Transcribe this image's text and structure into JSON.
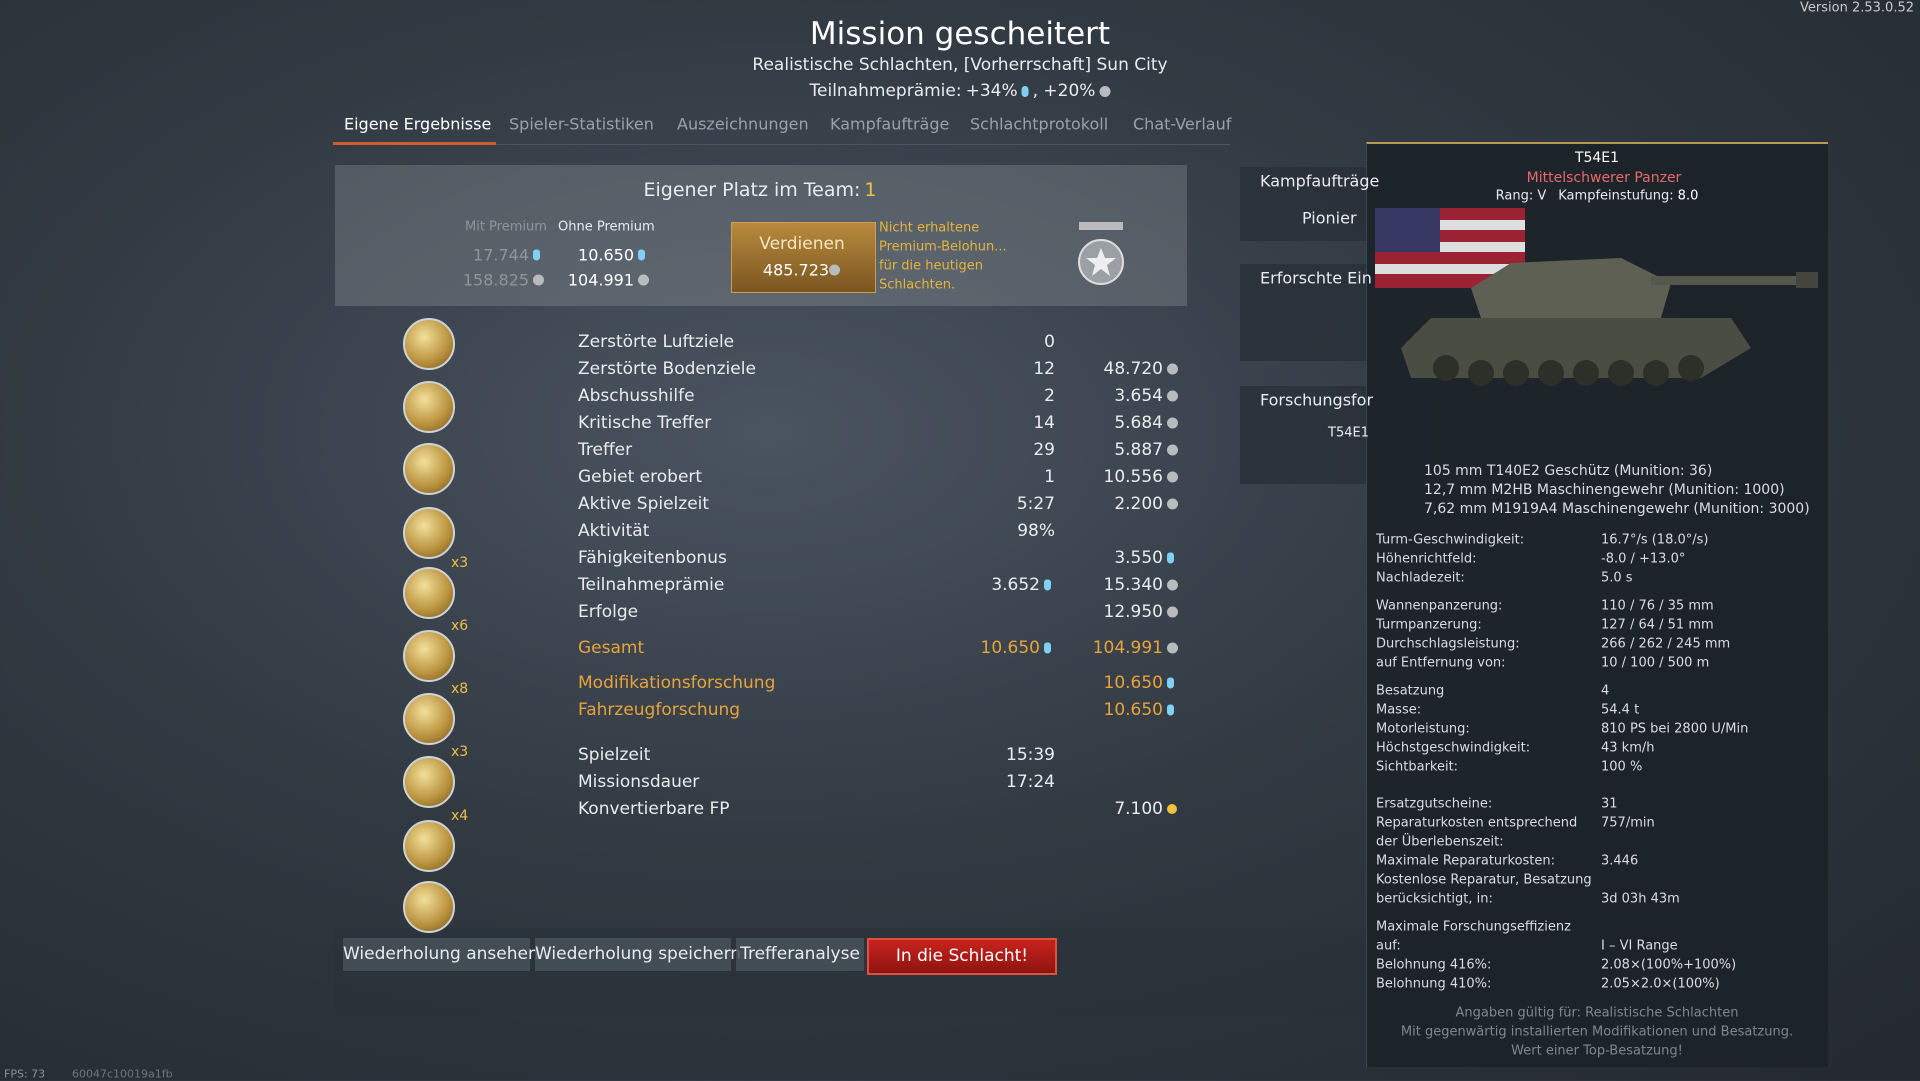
{
  "version": "Version 2.53.0.52",
  "header": {
    "title": "Mission gescheitert",
    "subtitle": "Realistische Schlachten, [Vorherrschaft] Sun City",
    "participation_label": "Teilnahmeprämie:",
    "participation_rp": "+34%",
    "participation_sl": ", +20%"
  },
  "tabs": [
    "Eigene Ergebnisse",
    "Spieler-Statistiken",
    "Auszeichnungen",
    "Kampfaufträge",
    "Schlachtprotokoll",
    "Chat-Verlauf"
  ],
  "rank_panel": {
    "heading": "Eigener Platz im Team:",
    "place": "1",
    "with_premium": "Mit Premium",
    "without_premium": "Ohne Premium",
    "premium_rp": "17.744",
    "premium_sl": "158.825",
    "base_rp": "10.650",
    "base_sl": "104.991",
    "earn_label": "Verdienen",
    "earn_value": "485.723",
    "note": [
      "Nicht erhaltene",
      "Premium-Belohun...",
      "für die heutigen",
      "Schlachten."
    ]
  },
  "medals": [
    null,
    null,
    null,
    null,
    "x3",
    "x6",
    "x8",
    "x3",
    "x4",
    null
  ],
  "results": {
    "rows": [
      {
        "label": "Zerstörte Luftziele",
        "count": "0"
      },
      {
        "label": "Zerstörte Bodenziele",
        "count": "12",
        "reward": "48.720",
        "reward_cur": "sl"
      },
      {
        "label": "Abschusshilfe",
        "count": "2",
        "reward": "3.654",
        "reward_cur": "sl"
      },
      {
        "label": "Kritische Treffer",
        "count": "14",
        "reward": "5.684",
        "reward_cur": "sl"
      },
      {
        "label": "Treffer",
        "count": "29",
        "reward": "5.887",
        "reward_cur": "sl"
      },
      {
        "label": "Gebiet erobert",
        "count": "1",
        "reward": "10.556",
        "reward_cur": "sl"
      },
      {
        "label": "Aktive Spielzeit",
        "count": "5:27",
        "reward": "2.200",
        "reward_cur": "sl"
      },
      {
        "label": "Aktivität",
        "count": "98%"
      },
      {
        "label": "Fähigkeitenbonus",
        "reward": "3.550",
        "reward_cur": "rp"
      },
      {
        "label": "Teilnahmeprämie",
        "count": "3.652",
        "count_cur": "rp",
        "reward": "15.340",
        "reward_cur": "sl"
      },
      {
        "label": "Erfolge",
        "reward": "12.950",
        "reward_cur": "sl"
      }
    ],
    "total": [
      {
        "label": "Gesamt",
        "count": "10.650",
        "count_cur": "rp",
        "reward": "104.991",
        "reward_cur": "sl"
      }
    ],
    "research": [
      {
        "label": "Modifikationsforschung",
        "reward": "10.650",
        "reward_cur": "rp"
      },
      {
        "label": "Fahrzeugforschung",
        "reward": "10.650",
        "reward_cur": "rp"
      }
    ],
    "time": [
      {
        "label": "Spielzeit",
        "count": "15:39"
      },
      {
        "label": "Missionsdauer",
        "count": "17:24"
      },
      {
        "label": "Konvertierbare FP",
        "reward": "7.100",
        "reward_cur": "gold"
      }
    ]
  },
  "buttons": [
    "Wiederholung ansehen",
    "Wiederholung speichern",
    "Trefferanalyse",
    "In die Schlacht!"
  ],
  "side_panels": {
    "missions": "Kampfaufträge",
    "mission_item": "Pionier",
    "researched": "Erforschte Ein",
    "research": "Forschungsfor",
    "research_vehicle": "T54E1"
  },
  "tooltip": {
    "name": "T54E1",
    "class": "Mittelschwerer Panzer",
    "rank": "Rang: V",
    "br_label": "Kampfeinstufung:",
    "br": "8.0",
    "weapons": [
      "105 mm T140E2 Geschütz (Munition: 36)",
      "12,7 mm M2HB Maschinengewehr (Munition: 1000)",
      "7,62 mm M1919A4 Maschinengewehr (Munition: 3000)"
    ],
    "specs": [
      [
        {
          "key": "Turm-Geschwindigkeit:",
          "value": "16.7°/s (18.0°/s)"
        },
        {
          "key": "Höhenrichtfeld:",
          "value": "-8.0 / +13.0°"
        },
        {
          "key": "Nachladezeit:",
          "value": "5.0 s"
        }
      ],
      [
        {
          "key": "Wannenpanzerung:",
          "value": "110 / 76 / 35 mm"
        },
        {
          "key": "Turmpanzerung:",
          "value": "127 / 64 / 51 mm"
        },
        {
          "key": "Durchschlagsleistung:",
          "value": "266 / 262 / 245 mm"
        },
        {
          "key": "auf Entfernung von:",
          "value": "10 / 100 / 500 m"
        }
      ],
      [
        {
          "key": "Besatzung",
          "value": "4"
        },
        {
          "key": "Masse:",
          "value": "54.4 t"
        },
        {
          "key": "Motorleistung:",
          "value": "810 PS bei 2800 U/Min"
        },
        {
          "key": "Höchstgeschwindigkeit:",
          "value": "43 km/h"
        },
        {
          "key": "Sichtbarkeit:",
          "value": "100 %"
        }
      ],
      [
        {
          "key": "Ersatzgutscheine:",
          "value": "31"
        },
        {
          "key": "Reparaturkosten entsprechend",
          "value": "757/min"
        },
        {
          "key": "der Überlebenszeit:"
        },
        {
          "key": "Maximale Reparaturkosten:",
          "value": "3.446"
        },
        {
          "key": "Kostenlose Reparatur, Besatzung"
        },
        {
          "key": "berücksichtigt, in:",
          "value": "3d 03h 43m"
        }
      ],
      [
        {
          "key": "Maximale Forschungseffizienz"
        },
        {
          "key": "auf:",
          "value": "I – VI Range"
        },
        {
          "key": "Belohnung 416%:",
          "value": "2.08×(100%+100%)"
        },
        {
          "key": "Belohnung 410%:",
          "value": "2.05×2.0×(100%)"
        }
      ]
    ],
    "footer": [
      "Angaben gültig für: Realistische Schlachten",
      "Mit gegenwärtig installierten Modifikationen und Besatzung.",
      "Wert einer Top-Besatzung!"
    ]
  },
  "footer": {
    "fps": "FPS: 73",
    "session": "60047c10019a1fb"
  }
}
